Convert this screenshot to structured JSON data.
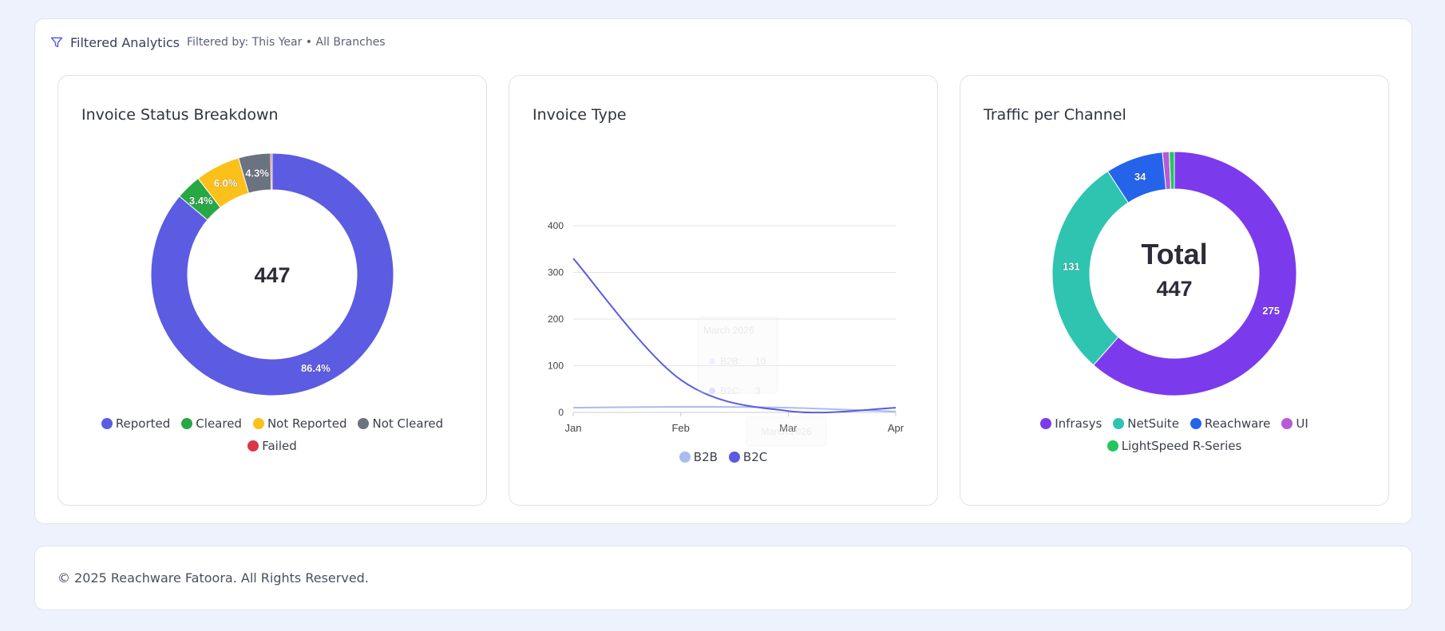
{
  "header": {
    "title": "Filtered Analytics",
    "filter_text": "Filtered by: This Year • All Branches"
  },
  "footer": {
    "copyright": "© 2025 Reachware Fatoora. All Rights Reserved."
  },
  "colors": {
    "accent": "#5b5bdf"
  },
  "chart_data": [
    {
      "type": "pie",
      "donut": true,
      "title": "Invoice Status Breakdown",
      "center_label": "447",
      "categories": [
        "Reported",
        "Cleared",
        "Not Reported",
        "Not Cleared",
        "Failed"
      ],
      "values": [
        86.4,
        3.4,
        6.0,
        4.3,
        0.2
      ],
      "value_labels": [
        "86.4%",
        "3.4%",
        "6.0%",
        "4.3%",
        ""
      ],
      "colors": [
        "#5b5ce2",
        "#28a745",
        "#fcc01a",
        "#6b7280",
        "#dc3545"
      ],
      "legend_position": "bottom"
    },
    {
      "type": "line",
      "title": "Invoice Type",
      "categories": [
        "Jan",
        "Feb",
        "Mar",
        "Apr"
      ],
      "ylim": [
        0,
        400
      ],
      "yticks": [
        "400",
        "300",
        "200",
        "100",
        "0"
      ],
      "series": [
        {
          "name": "B2B",
          "values": [
            10,
            12,
            10,
            2
          ],
          "color": "#a9bcf0"
        },
        {
          "name": "B2C",
          "values": [
            330,
            70,
            3,
            10
          ],
          "color": "#5b5bdf"
        }
      ],
      "tooltip": {
        "title": "March 2026",
        "rows": [
          {
            "name": "B2B",
            "value": "10"
          },
          {
            "name": "B2C",
            "value": "3"
          }
        ],
        "xlabel": "March 2026"
      },
      "legend_position": "bottom"
    },
    {
      "type": "pie",
      "donut": true,
      "title": "Traffic per Channel",
      "center_label": "Total",
      "center_value": "447",
      "categories": [
        "Infrasys",
        "NetSuite",
        "Reachware",
        "UI",
        "LightSpeed R-Series"
      ],
      "values": [
        275,
        131,
        34,
        4,
        3
      ],
      "value_labels": [
        "275",
        "131",
        "34",
        "",
        ""
      ],
      "colors": [
        "#7c3aed",
        "#2ec4b0",
        "#2563eb",
        "#b65ad8",
        "#22c55e"
      ],
      "legend_position": "bottom"
    }
  ]
}
